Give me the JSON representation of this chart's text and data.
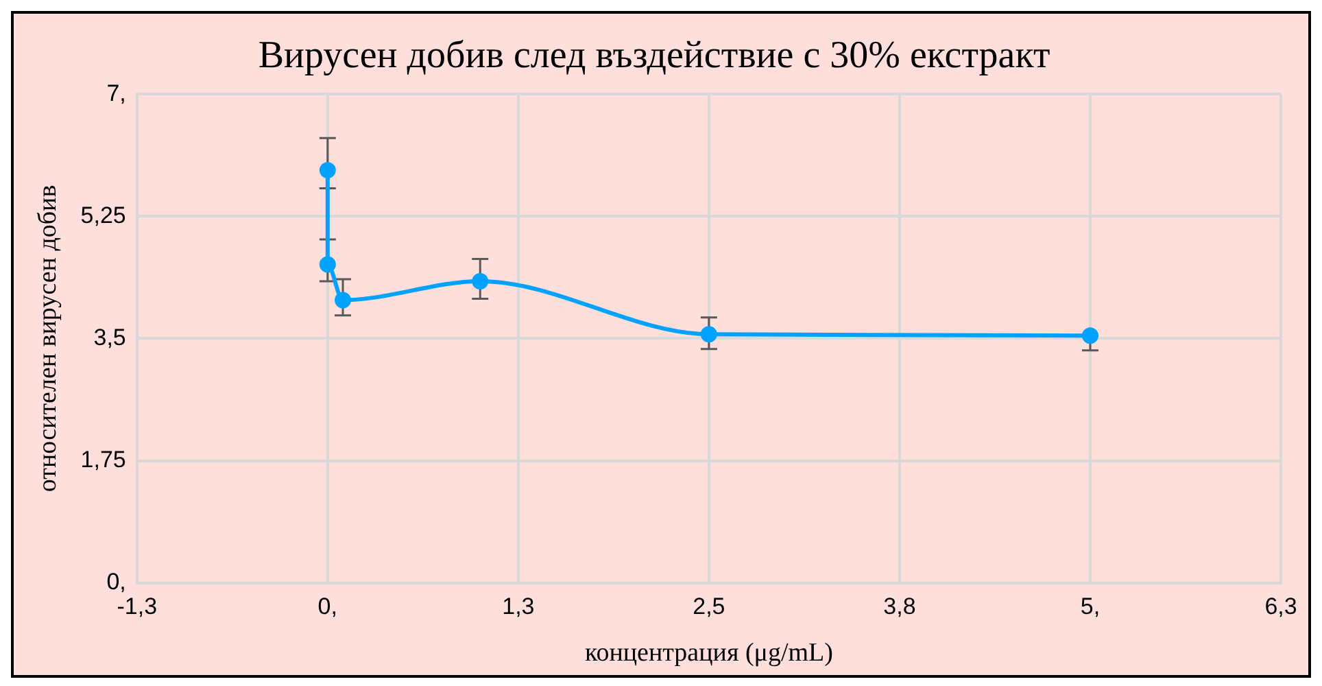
{
  "chart_data": {
    "type": "line",
    "title": "Вирусен добив след въздействие с 30% екстракт",
    "xlabel": "концентрация (μg/mL)",
    "ylabel": "относителен вирусен добив",
    "x": [
      0,
      0,
      0.1,
      1,
      2.5,
      5
    ],
    "series": [
      {
        "color": "#00a2ff",
        "values": [
          5.91,
          4.56,
          4.05,
          4.32,
          3.56,
          3.54
        ],
        "errors": [
          [
            5.65,
            6.37
          ],
          [
            4.32,
            4.92
          ],
          [
            3.83,
            4.35
          ],
          [
            4.07,
            4.64
          ],
          [
            3.35,
            3.8
          ],
          [
            3.33,
            3.54
          ]
        ]
      }
    ],
    "xlim": [
      -1.25,
      6.25
    ],
    "xticks": [
      {
        "value": -1.25,
        "label": "-1,3"
      },
      {
        "value": 0,
        "label": "0,"
      },
      {
        "value": 1.25,
        "label": "1,3"
      },
      {
        "value": 2.5,
        "label": "2,5"
      },
      {
        "value": 3.75,
        "label": "3,8"
      },
      {
        "value": 5,
        "label": "5,"
      },
      {
        "value": 6.25,
        "label": "6,3"
      }
    ],
    "ylim": [
      0,
      7
    ],
    "yticks": [
      {
        "value": 0,
        "label": "0,"
      },
      {
        "value": 1.75,
        "label": "1,75"
      },
      {
        "value": 3.5,
        "label": "3,5"
      },
      {
        "value": 5.25,
        "label": "5,25"
      },
      {
        "value": 7,
        "label": "7,"
      }
    ],
    "grid": true,
    "marker": "circle",
    "line_style": "solid",
    "legend": false
  }
}
